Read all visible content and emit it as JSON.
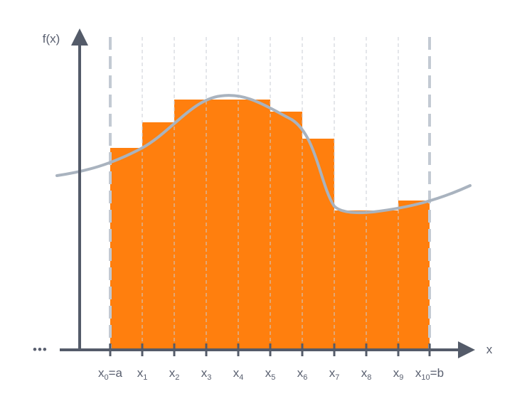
{
  "axes": {
    "y_label": "f(x)",
    "x_label": "x",
    "ellipsis": "•••"
  },
  "ticks": [
    {
      "base": "x",
      "sub": "0",
      "suffix": "=a"
    },
    {
      "base": "x",
      "sub": "1",
      "suffix": ""
    },
    {
      "base": "x",
      "sub": "2",
      "suffix": ""
    },
    {
      "base": "x",
      "sub": "3",
      "suffix": ""
    },
    {
      "base": "x",
      "sub": "4",
      "suffix": ""
    },
    {
      "base": "x",
      "sub": "5",
      "suffix": ""
    },
    {
      "base": "x",
      "sub": "6",
      "suffix": ""
    },
    {
      "base": "x",
      "sub": "7",
      "suffix": ""
    },
    {
      "base": "x",
      "sub": "8",
      "suffix": ""
    },
    {
      "base": "x",
      "sub": "9",
      "suffix": ""
    },
    {
      "base": "x",
      "sub": "10",
      "suffix": "=b"
    }
  ],
  "colors": {
    "bar": "#ff7f0e",
    "curve": "#a9b3bf",
    "axis": "#545b69",
    "bound_line": "#c3cad3",
    "grid_line": "#c9ced6"
  }
}
